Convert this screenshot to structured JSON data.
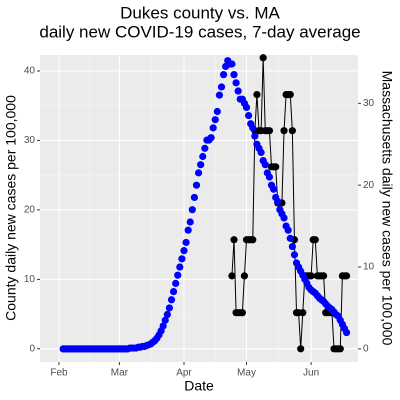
{
  "chart_data": {
    "type": "scatter",
    "title": [
      "Dukes county vs. MA",
      "daily new COVID-19 cases, 7-day average"
    ],
    "xlabel": "Date",
    "ylabel": "County daily new cases per 100,000",
    "y2label": "Massachusetts daily new cases per 100,000",
    "y2label_color": "#0000ff",
    "xlim": [
      22.9,
      175.5
    ],
    "xticks": [
      {
        "value": 32,
        "label": "Feb"
      },
      {
        "value": 61,
        "label": "Mar"
      },
      {
        "value": 92,
        "label": "Apr"
      },
      {
        "value": 122,
        "label": "May"
      },
      {
        "value": 153,
        "label": "Jun"
      }
    ],
    "ylim": [
      -1.9,
      42.3
    ],
    "yticks": [
      0,
      10,
      20,
      30,
      40
    ],
    "y2lim": [
      -1.6,
      35.9
    ],
    "y2ticks": [
      0,
      10,
      20,
      30
    ],
    "grid": true,
    "series": [
      {
        "color": "#000000",
        "line": true,
        "x": [
          115,
          116,
          117,
          118,
          119,
          120,
          121,
          122,
          123,
          124,
          125,
          126,
          127,
          128,
          129,
          130,
          131,
          132,
          133,
          134,
          135,
          136,
          137,
          138,
          139,
          140,
          141,
          142,
          143,
          144,
          145,
          146,
          147,
          148,
          149,
          150,
          151,
          152,
          153,
          154,
          155,
          156,
          157,
          158,
          159,
          160,
          161,
          162,
          163,
          164,
          165,
          166,
          167,
          168,
          169,
          170
        ],
        "values": [
          10.5,
          15.7,
          5.2,
          5.2,
          5.2,
          5.2,
          10.5,
          15.7,
          15.7,
          15.7,
          15.7,
          31.4,
          36.6,
          31.4,
          31.4,
          41.9,
          31.4,
          31.4,
          31.4,
          26.2,
          26.2,
          26.2,
          21,
          21,
          21,
          31.4,
          36.6,
          36.6,
          36.6,
          31.4,
          15.7,
          5.2,
          5.2,
          0,
          5.2,
          10.5,
          10.5,
          10.5,
          10.5,
          15.7,
          15.7,
          10.5,
          10.5,
          10.5,
          10.5,
          5.2,
          5.2,
          5.2,
          5.2,
          0,
          0,
          0,
          0,
          10.5,
          10.5,
          10.5
        ]
      },
      {
        "color": "#0000ff",
        "axis": "y2",
        "line": false,
        "x": [
          34,
          35,
          36,
          37,
          38,
          39,
          40,
          41,
          42,
          43,
          44,
          45,
          46,
          47,
          48,
          49,
          50,
          51,
          52,
          53,
          54,
          55,
          56,
          57,
          58,
          59,
          60,
          61,
          62,
          63,
          64,
          65,
          66,
          67,
          68,
          69,
          70,
          71,
          72,
          73,
          74,
          75,
          76,
          77,
          78,
          79,
          80,
          81,
          82,
          83,
          84,
          85,
          86,
          87,
          88,
          89,
          90,
          91,
          92,
          93,
          94,
          95,
          96,
          97,
          98,
          99,
          100,
          101,
          102,
          103,
          104,
          105,
          106,
          107,
          108,
          109,
          110,
          111,
          112,
          113,
          114,
          115,
          116,
          117,
          118,
          119,
          120,
          121,
          122,
          123,
          124,
          125,
          126,
          127,
          128,
          129,
          130,
          131,
          132,
          133,
          134,
          135,
          136,
          137,
          138,
          139,
          140,
          141,
          142,
          143,
          144,
          145,
          146,
          147,
          148,
          149,
          150,
          151,
          152,
          153,
          154,
          155,
          156,
          157,
          158,
          159,
          160,
          161,
          162,
          163,
          164,
          165,
          166,
          167,
          168,
          169,
          170
        ],
        "values": [
          0,
          0,
          0,
          0,
          0,
          0,
          0,
          0,
          0,
          0,
          0,
          0,
          0,
          0,
          0,
          0,
          0,
          0,
          0,
          0,
          0,
          0,
          0,
          0,
          0,
          0,
          0,
          0,
          0,
          0,
          0,
          0,
          0.1,
          0.1,
          0.1,
          0.1,
          0.2,
          0.2,
          0.3,
          0.3,
          0.4,
          0.5,
          0.6,
          0.8,
          1,
          1.3,
          1.7,
          2.2,
          2.8,
          3.5,
          4.2,
          5,
          6,
          7,
          8,
          9,
          10,
          11,
          12,
          13,
          14.5,
          15.5,
          17,
          18.5,
          20,
          21.5,
          22.5,
          23.5,
          24.5,
          25.5,
          25.5,
          25.8,
          27,
          28,
          29,
          31,
          32,
          33.5,
          34.5,
          35.2,
          34.8,
          34.8,
          33.5,
          32.5,
          31.5,
          30.5,
          30.5,
          30,
          29.5,
          28.5,
          27.5,
          27,
          26,
          25,
          24.5,
          24,
          23,
          22.5,
          21.5,
          21,
          20,
          19.5,
          18.5,
          18,
          17,
          16.5,
          16,
          15,
          14.5,
          13.5,
          12.5,
          11.5,
          10.5,
          10,
          9.5,
          9,
          8.5,
          8,
          7.5,
          7.2,
          7,
          6.8,
          6.5,
          6.2,
          6,
          5.8,
          5.5,
          5.2,
          5,
          4.8,
          4.5,
          4.2,
          4,
          3.5,
          3,
          2.5,
          2
        ]
      }
    ]
  }
}
